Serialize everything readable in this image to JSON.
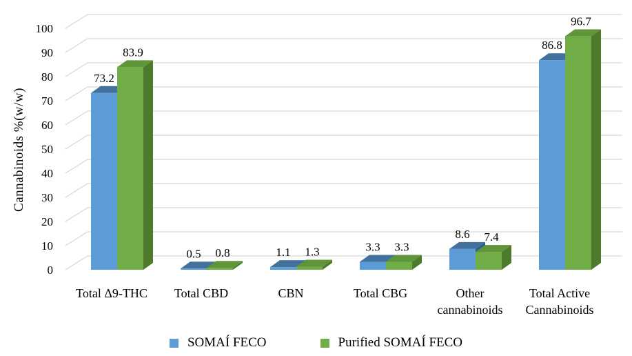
{
  "chart_data": {
    "type": "bar",
    "variant": "3d-clustered-column",
    "title": "",
    "xlabel": "",
    "ylabel": "Cannabinoids %(w/w)",
    "categories": [
      "Total Δ9-THC",
      "Total CBD",
      "CBN",
      "Total CBG",
      "Other cannabinoids",
      "Total Active Cannabinoids"
    ],
    "category_lines": [
      [
        "Total Δ9-THC"
      ],
      [
        "Total CBD"
      ],
      [
        "CBN"
      ],
      [
        "Total CBG"
      ],
      [
        "Other",
        "cannabinoids"
      ],
      [
        "Total Active",
        "Cannabinoids"
      ]
    ],
    "series": [
      {
        "name": "SOMAÍ FECO",
        "values": [
          73.2,
          0.5,
          1.1,
          3.3,
          8.6,
          86.8
        ],
        "color_front": "#5B9CD6",
        "color_top": "#41719C",
        "color_side": "#2E5F8A"
      },
      {
        "name": "Purified SOMAÍ FECO",
        "values": [
          83.9,
          0.8,
          1.3,
          3.3,
          7.4,
          96.7
        ],
        "color_front": "#70AD47",
        "color_top": "#619539",
        "color_side": "#4E7A2C"
      }
    ],
    "data_labels": [
      [
        "73.2",
        "0.5",
        "1.1",
        "3.3",
        "8.6",
        "86.8"
      ],
      [
        "83.9",
        "0.8",
        "1.3",
        "3.3",
        "7.4",
        "96.7"
      ]
    ],
    "ylim": [
      0,
      100
    ],
    "yticks": [
      0,
      10,
      20,
      30,
      40,
      50,
      60,
      70,
      80,
      90,
      100
    ],
    "grid": true,
    "legend_position": "bottom",
    "colors": {
      "gridline": "#D8D8D8",
      "text": "#000000",
      "background": "#FFFFFF"
    }
  }
}
